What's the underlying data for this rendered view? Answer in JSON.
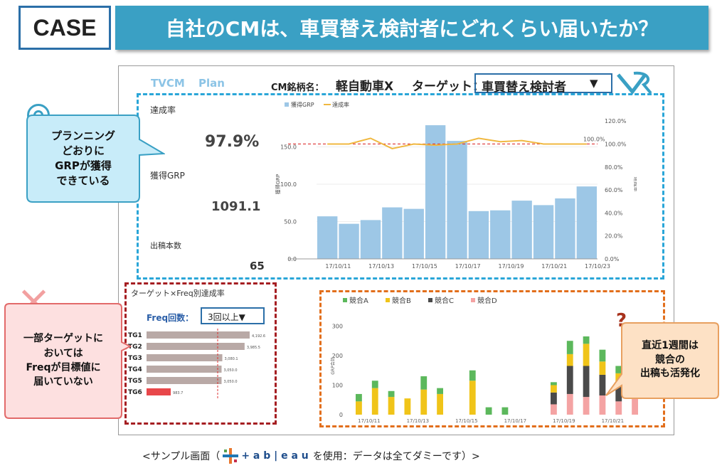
{
  "header": {
    "case_label": "CASE",
    "title": "自社のCMは、車買替え検討者にどれくらい届いたか？"
  },
  "dashboard": {
    "tab_tvcm": "TVCM",
    "tab_plan": "Plan",
    "cm_label": "CM銘柄名：",
    "cm_value": "軽自動車X",
    "target_label": "ターゲット：",
    "target_value": "車買替え検討者",
    "target_arrow": "▼",
    "logo_icon": "vr-logo-icon",
    "kpi": {
      "achievement_label": "達成率",
      "achievement_value": "97.9%",
      "grp_label": "獲得GRP",
      "grp_value": "1091.1",
      "spots_label": "出稿本数",
      "spots_value": "65"
    },
    "freq_panel": {
      "title": "ターゲット×Freq別達成率",
      "freq_label": "Freq回数：",
      "freq_value": "3回以上▼"
    }
  },
  "callouts": {
    "planning": "プランニング\nどおりに\nGRPが獲得\nできている",
    "freq": "一部ターゲットに\nおいては\nFreqが目標値に\n届いていない",
    "competitor": "直近1週間は\n競合の\n出稿も活発化"
  },
  "footer": {
    "before": "<サンプル画面（",
    "tableau": "+ a b | e a u",
    "after": "を使用：データは全てダミーです）>"
  },
  "chart_data": [
    {
      "type": "bar",
      "title": "",
      "legend": [
        "獲得GRP",
        "達成率"
      ],
      "ylabel": "獲得GRP",
      "y2label": "達成率",
      "ylim": [
        0,
        200
      ],
      "y2lim": [
        0,
        1.3
      ],
      "yticks": [
        "0.0",
        "50.0",
        "100.0",
        "150.0"
      ],
      "y2ticks": [
        "0.0%",
        "20.0%",
        "40.0%",
        "60.0%",
        "80.0%",
        "100.0%",
        "120.0%"
      ],
      "xticks": [
        "17/10/11",
        "17/10/13",
        "17/10/15",
        "17/10/17",
        "17/10/19",
        "17/10/21",
        "17/10/23"
      ],
      "series": [
        {
          "name": "獲得GRP",
          "values": [
            57,
            47,
            52,
            69,
            67,
            179,
            158,
            64,
            65,
            78,
            72,
            81,
            97
          ]
        },
        {
          "name": "達成率",
          "values": [
            1.0,
            1.0,
            1.05,
            0.96,
            1.0,
            0.99,
            1.0,
            1.05,
            1.02,
            1.03,
            1.0,
            1.0,
            1.0
          ]
        }
      ],
      "reference_line": {
        "value": 1.0,
        "label": "100.0%"
      }
    },
    {
      "type": "bar",
      "title": "",
      "categories": [
        "TG1",
        "TG2",
        "TG3",
        "TG4",
        "TG5",
        "TG6"
      ],
      "values": [
        4192.6,
        3985.5,
        3080.1,
        3050.0,
        3050.0,
        983.7
      ],
      "labels": [
        "4,192.6",
        "3,985.5",
        "3,080.1",
        "3,050.0",
        "3,050.0",
        "983.7"
      ],
      "colors": [
        "#b9a9a6",
        "#b9a9a6",
        "#b9a9a6",
        "#b9a9a6",
        "#b9a9a6",
        "#e8474a"
      ]
    },
    {
      "type": "bar",
      "title": "",
      "ylabel": "GRP合計",
      "ylim": [
        0,
        330
      ],
      "yticks": [
        "0",
        "100",
        "200",
        "300"
      ],
      "xticks": [
        "17/10/11",
        "17/10/13",
        "17/10/15",
        "17/10/17",
        "17/10/19",
        "17/10/21"
      ],
      "series": [
        {
          "name": "競合A",
          "color": "#5cb85c",
          "values": [
            25,
            25,
            20,
            0,
            45,
            20,
            0,
            35,
            25,
            25,
            0,
            0,
            10,
            45,
            25,
            40,
            25,
            20
          ]
        },
        {
          "name": "競合B",
          "color": "#f0c419",
          "values": [
            45,
            90,
            60,
            55,
            85,
            70,
            0,
            115,
            0,
            0,
            0,
            0,
            25,
            40,
            75,
            45,
            30,
            30
          ]
        },
        {
          "name": "競合C",
          "color": "#4a4a4a",
          "values": [
            0,
            0,
            0,
            0,
            0,
            0,
            0,
            0,
            0,
            0,
            0,
            0,
            40,
            95,
            105,
            70,
            65,
            80
          ]
        },
        {
          "name": "競合D",
          "color": "#f4a3a3",
          "values": [
            0,
            0,
            0,
            0,
            0,
            0,
            0,
            0,
            0,
            0,
            0,
            0,
            35,
            70,
            60,
            65,
            45,
            80
          ]
        }
      ]
    }
  ]
}
